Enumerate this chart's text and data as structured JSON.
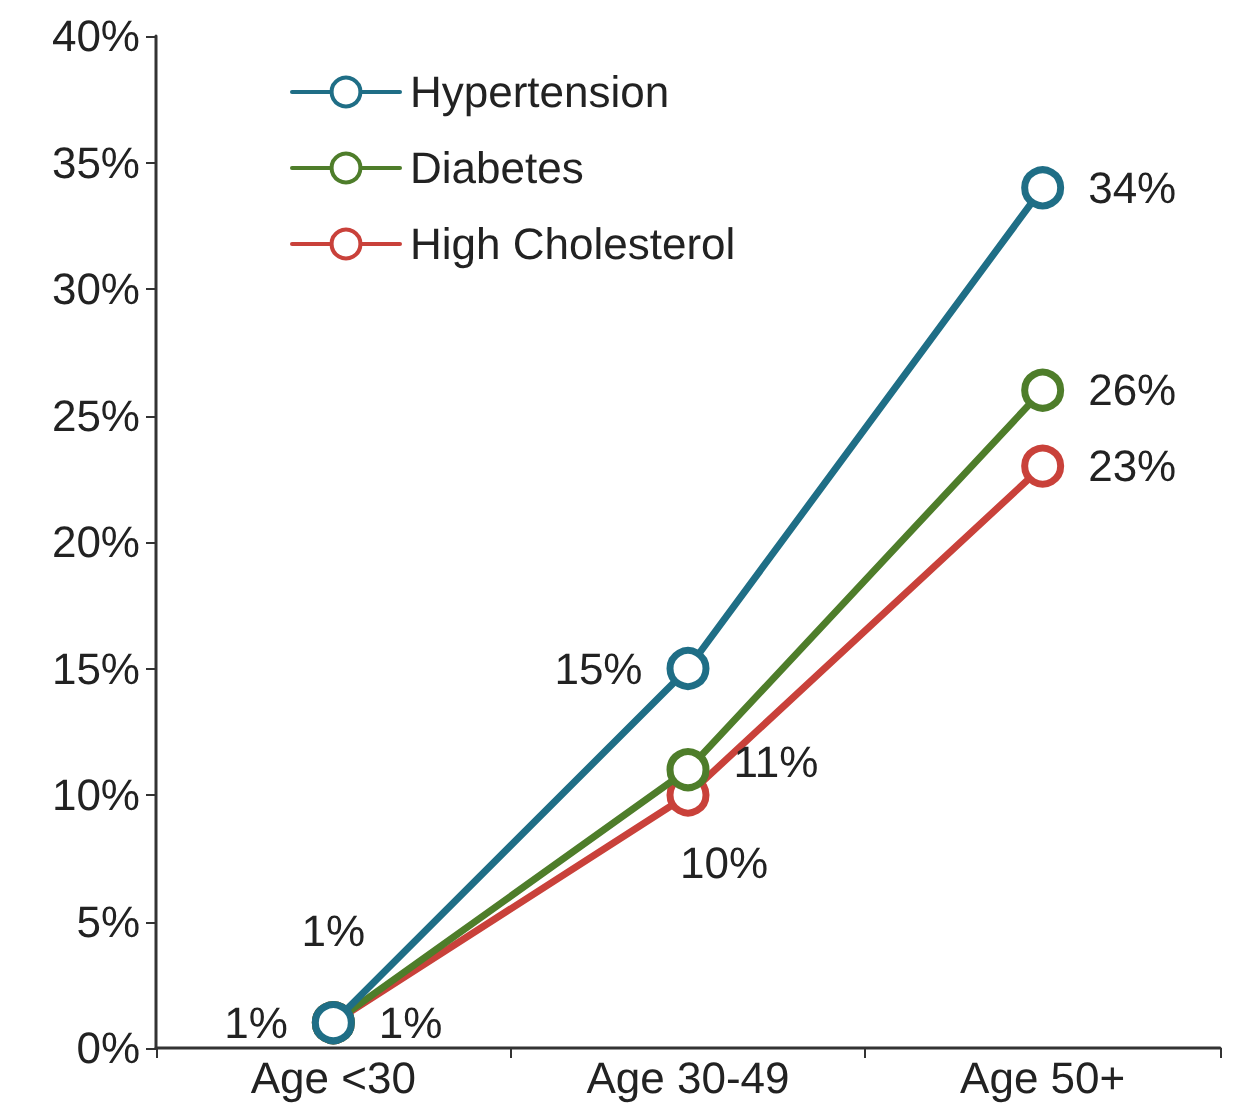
{
  "chart_data": {
    "type": "line",
    "categories": [
      "Age <30",
      "Age 30-49",
      "Age 50+"
    ],
    "series": [
      {
        "name": "Hypertension",
        "color": "#1f6e86",
        "values": [
          1,
          15,
          34
        ],
        "value_labels": [
          "1%",
          "15%",
          "34%"
        ]
      },
      {
        "name": "Diabetes",
        "color": "#4e7d2a",
        "values": [
          1,
          11,
          26
        ],
        "value_labels": [
          "1%",
          "11%",
          "26%"
        ]
      },
      {
        "name": "High Cholesterol",
        "color": "#c9413a",
        "values": [
          1,
          10,
          23
        ],
        "value_labels": [
          "1%",
          "10%",
          "23%"
        ]
      }
    ],
    "ylim": [
      0,
      40
    ],
    "yticks": [
      {
        "value": 0,
        "label": "0%"
      },
      {
        "value": 5,
        "label": "5%"
      },
      {
        "value": 10,
        "label": "10%"
      },
      {
        "value": 15,
        "label": "15%"
      },
      {
        "value": 20,
        "label": "20%"
      },
      {
        "value": 25,
        "label": "25%"
      },
      {
        "value": 30,
        "label": "30%"
      },
      {
        "value": 35,
        "label": "35%"
      },
      {
        "value": 40,
        "label": "40%"
      }
    ],
    "grid": false,
    "legend": "top left",
    "marker": "circle",
    "line_style": "solid"
  }
}
